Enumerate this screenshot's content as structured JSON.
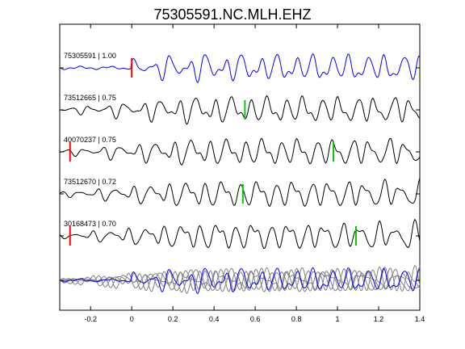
{
  "chart_data": {
    "type": "line",
    "title": "75305591.NC.MLH.EHZ",
    "xlabel": "",
    "ylabel": "",
    "xlim": [
      -0.35,
      1.4
    ],
    "xticks": [
      -0.2,
      0,
      0.2,
      0.4,
      0.6,
      0.8,
      1,
      1.2,
      1.4
    ],
    "xtick_labels": [
      "-0.2",
      "0",
      "0.2",
      "0.4",
      "0.6",
      "0.8",
      "1",
      "1.2",
      "1.4"
    ],
    "grid": false,
    "colors": {
      "reference": "#0000ff",
      "correlated": "#000000",
      "stack": "#808080",
      "p_pick": "#ff0000",
      "s_pick": "#00cc00"
    },
    "series": [
      {
        "name": "75305591 | 1.00",
        "role": "reference",
        "color": "#0000ff",
        "p_pick": 0.0,
        "s_pick": null
      },
      {
        "name": "73512665 | 0.75",
        "role": "correlated",
        "color": "#000000",
        "p_pick": null,
        "s_pick": 0.55
      },
      {
        "name": "40070237 | 0.75",
        "role": "correlated",
        "color": "#000000",
        "p_pick": -0.3,
        "s_pick": 0.98
      },
      {
        "name": "73512670 | 0.72",
        "role": "correlated",
        "color": "#000000",
        "p_pick": null,
        "s_pick": 0.54
      },
      {
        "name": "30168473 | 0.70",
        "role": "correlated",
        "color": "#000000",
        "p_pick": -0.3,
        "s_pick": 1.09
      }
    ],
    "stack": {
      "role": "overlay",
      "color": "#808080",
      "reference_color": "#0000ff"
    }
  }
}
